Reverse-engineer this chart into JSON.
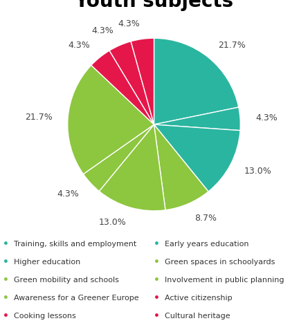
{
  "title": "Youth subjects",
  "slices": [
    {
      "label": "Training, skills and employment",
      "value": 21.7,
      "color": "#2ab5a0"
    },
    {
      "label": "Early years education",
      "value": 4.3,
      "color": "#2ab5a0"
    },
    {
      "label": "Higher education",
      "value": 13.0,
      "color": "#2ab5a0"
    },
    {
      "label": "Green spaces in schoolyards",
      "value": 8.7,
      "color": "#8dc63f"
    },
    {
      "label": "Green mobility and schools",
      "value": 13.0,
      "color": "#8dc63f"
    },
    {
      "label": "Involvement in public planning",
      "value": 4.3,
      "color": "#8dc63f"
    },
    {
      "label": "Awareness for a Greener Europe",
      "value": 21.7,
      "color": "#8dc63f"
    },
    {
      "label": "Active citizenship",
      "value": 4.3,
      "color": "#e5174a"
    },
    {
      "label": "Cooking lessons",
      "value": 4.3,
      "color": "#e5174a"
    },
    {
      "label": "Cultural heritage",
      "value": 4.3,
      "color": "#e5174a"
    }
  ],
  "legend_rows": [
    [
      {
        "label": "Training, skills and employment",
        "color": "#2ab5a0"
      },
      {
        "label": "Early years education",
        "color": "#2ab5a0"
      }
    ],
    [
      {
        "label": "Higher education",
        "color": "#2ab5a0"
      },
      {
        "label": "Green spaces in schoolyards",
        "color": "#8dc63f"
      }
    ],
    [
      {
        "label": "Green mobility and schools",
        "color": "#8dc63f"
      },
      {
        "label": "Involvement in public planning",
        "color": "#8dc63f"
      }
    ],
    [
      {
        "label": "Awareness for a Greener Europe",
        "color": "#8dc63f"
      },
      {
        "label": "Active citizenship",
        "color": "#e5174a"
      }
    ],
    [
      {
        "label": "Cooking lessons",
        "color": "#e5174a"
      },
      {
        "label": "Cultural heritage",
        "color": "#e5174a"
      }
    ]
  ],
  "title_fontsize": 20,
  "label_fontsize": 9,
  "legend_fontsize": 8,
  "background_color": "#ffffff"
}
